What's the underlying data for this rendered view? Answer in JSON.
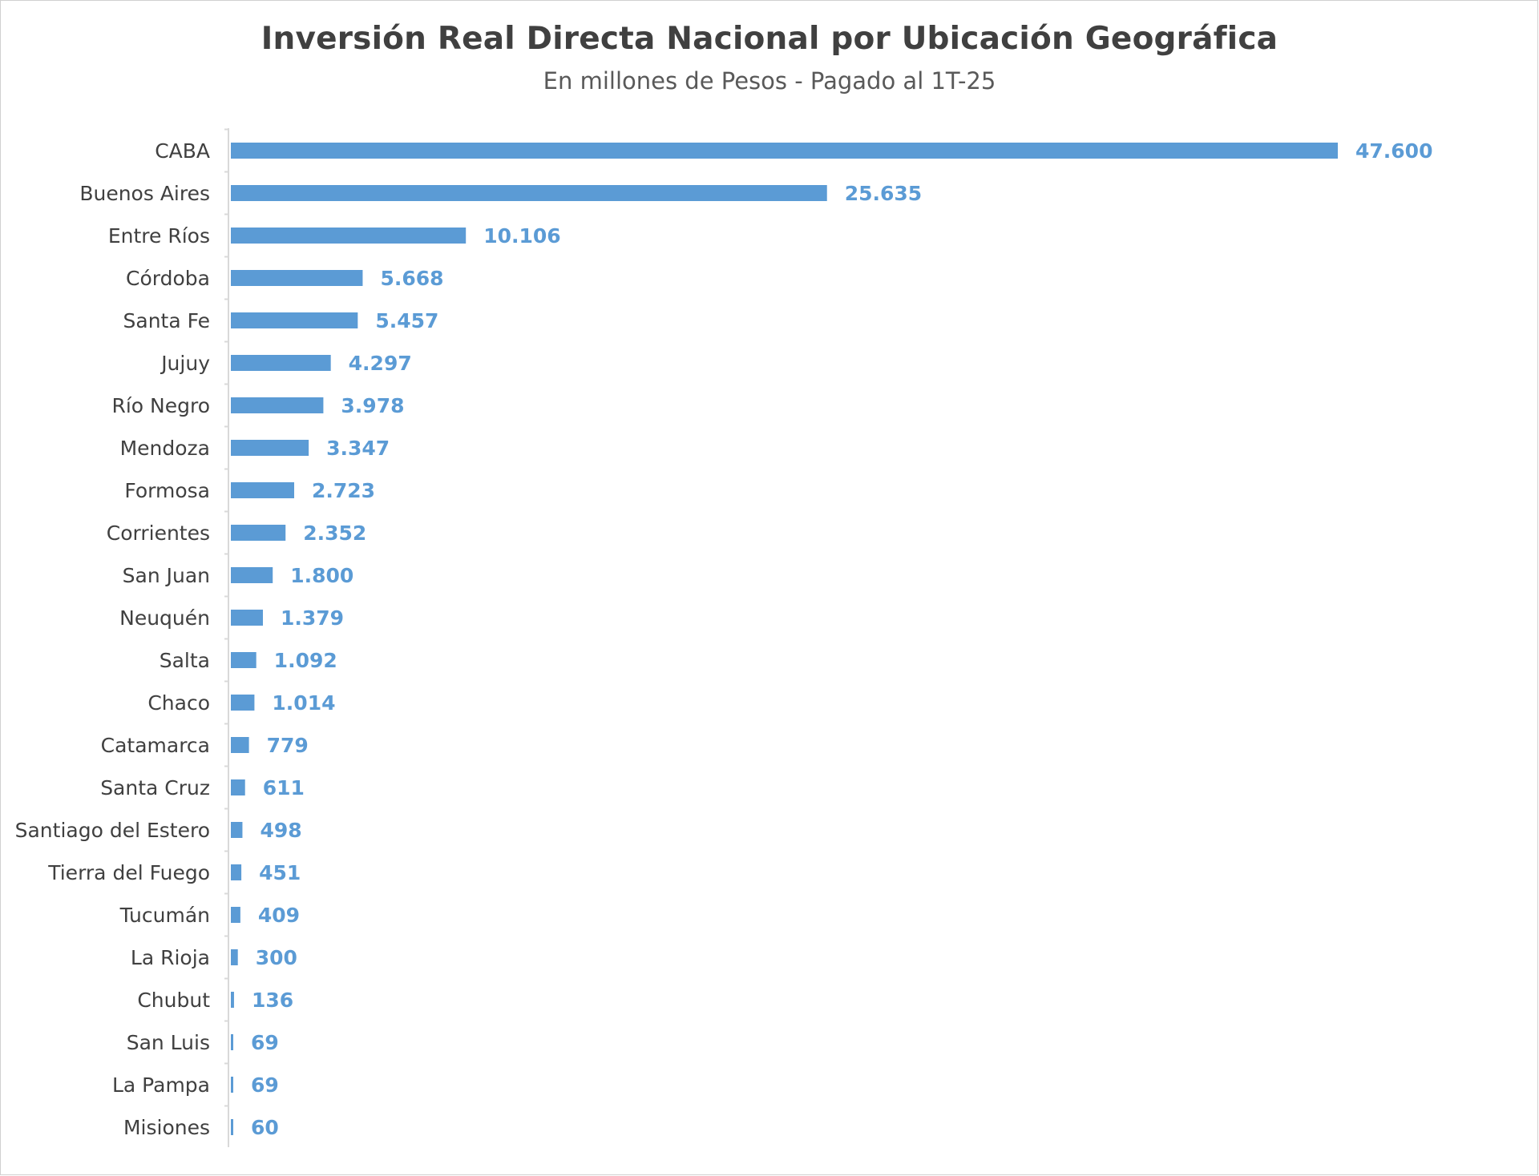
{
  "chart_data": {
    "type": "bar",
    "orientation": "horizontal",
    "title": "Inversión Real Directa Nacional por Ubicación Geográfica",
    "subtitle": "En millones de Pesos - Pagado al 1T-25",
    "bar_color": "#5b9bd5",
    "categories": [
      "CABA",
      "Buenos Aires",
      "Entre Ríos",
      "Córdoba",
      "Santa Fe",
      "Jujuy",
      "Río Negro",
      "Mendoza",
      "Formosa",
      "Corrientes",
      "San Juan",
      "Neuquén",
      "Salta",
      "Chaco",
      "Catamarca",
      "Santa Cruz",
      "Santiago del Estero",
      "Tierra del Fuego",
      "Tucumán",
      "La Rioja",
      "Chubut",
      "San Luis",
      "La Pampa",
      "Misiones"
    ],
    "values": [
      47600,
      25635,
      10106,
      5668,
      5457,
      4297,
      3978,
      3347,
      2723,
      2352,
      1800,
      1379,
      1092,
      1014,
      779,
      611,
      498,
      451,
      409,
      300,
      136,
      69,
      69,
      60
    ],
    "value_labels": [
      "47.600",
      "25.635",
      "10.106",
      "5.668",
      "5.457",
      "4.297",
      "3.978",
      "3.347",
      "2.723",
      "2.352",
      "1.800",
      "1.379",
      "1.092",
      "1.014",
      "779",
      "611",
      "498",
      "451",
      "409",
      "300",
      "136",
      "69",
      "69",
      "60"
    ],
    "xlim": [
      0,
      47600
    ],
    "grid": false,
    "legend": false
  }
}
